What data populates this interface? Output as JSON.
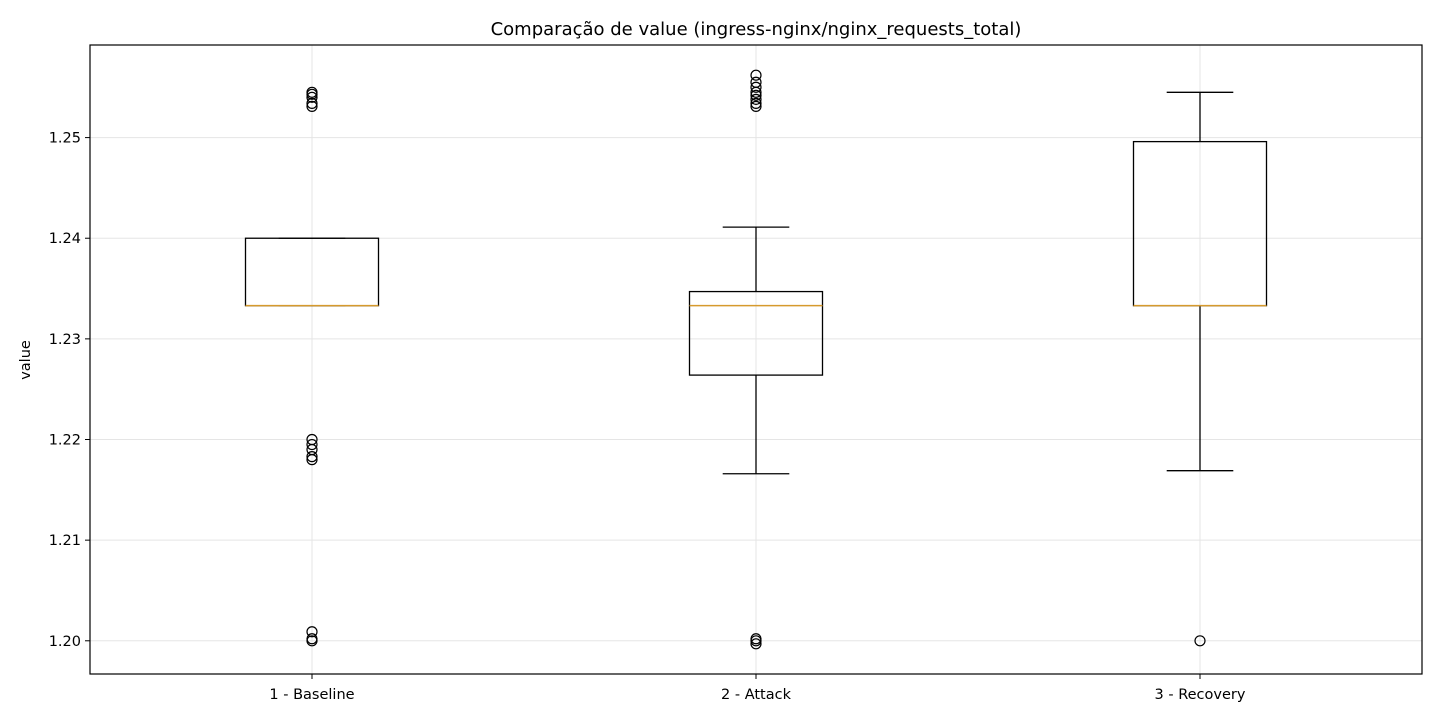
{
  "chart_data": {
    "type": "box",
    "title": "Comparação de value (ingress-nginx/nginx_requests_total)",
    "xlabel": "",
    "ylabel": "value",
    "ylim": [
      1.1967,
      1.2592
    ],
    "yticks": [
      1.2,
      1.21,
      1.22,
      1.23,
      1.24,
      1.25
    ],
    "ytick_labels": [
      "1.20",
      "1.21",
      "1.22",
      "1.23",
      "1.24",
      "1.25"
    ],
    "grid": true,
    "categories": [
      "1 - Baseline",
      "2 - Attack",
      "3 - Recovery"
    ],
    "boxes": [
      {
        "category": "1 - Baseline",
        "whisker_low": 1.2333,
        "q1": 1.2333,
        "median": 1.2333,
        "q3": 1.24,
        "whisker_high": 1.24,
        "outliers": [
          1.2545,
          1.2543,
          1.254,
          1.2534,
          1.2531,
          1.22,
          1.2195,
          1.219,
          1.2183,
          1.218,
          1.2009,
          1.2002,
          1.2
        ]
      },
      {
        "category": "2 - Attack",
        "whisker_low": 1.2166,
        "q1": 1.2264,
        "median": 1.2333,
        "q3": 1.2347,
        "whisker_high": 1.2411,
        "outliers": [
          1.2562,
          1.2555,
          1.255,
          1.2545,
          1.2542,
          1.2538,
          1.2534,
          1.2531,
          1.2002,
          1.2,
          1.1997
        ]
      },
      {
        "category": "3 - Recovery",
        "whisker_low": 1.2169,
        "q1": 1.2333,
        "median": 1.2333,
        "q3": 1.2496,
        "whisker_high": 1.2545,
        "outliers": [
          1.2
        ]
      }
    ],
    "colors": {
      "box": "#000000",
      "median": "#d69a2d",
      "grid": "#e5e5e5"
    }
  }
}
